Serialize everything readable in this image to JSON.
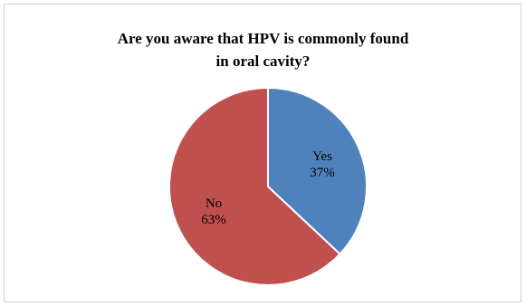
{
  "chart_data": {
    "type": "pie",
    "title_lines": [
      "Are you aware that HPV is commonly found",
      "in oral cavity?"
    ],
    "slices": [
      {
        "label": "Yes",
        "value": 37,
        "value_label": "37%",
        "color": "#4f81bd"
      },
      {
        "label": "No",
        "value": 63,
        "value_label": "63%",
        "color": "#c0504d"
      }
    ],
    "start_angle_deg": 0,
    "direction": "clockwise",
    "legend": "none"
  }
}
